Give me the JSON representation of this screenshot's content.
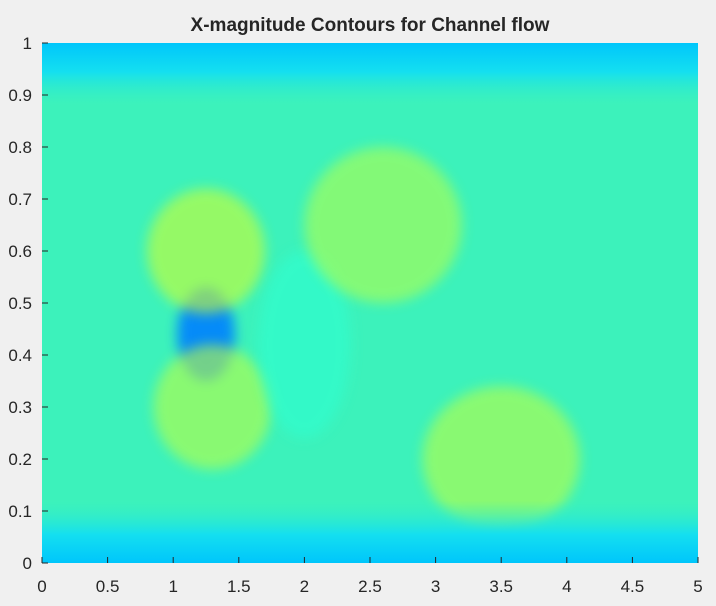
{
  "chart_data": {
    "type": "heatmap",
    "title": "X-magnitude Contours for Channel flow",
    "xlabel": "",
    "ylabel": "",
    "xlim": [
      0,
      5
    ],
    "ylim": [
      0,
      1
    ],
    "x_ticks": [
      "0",
      "0.5",
      "1",
      "1.5",
      "2",
      "2.5",
      "3",
      "3.5",
      "4",
      "4.5",
      "5"
    ],
    "y_ticks": [
      "0",
      "0.1",
      "0.2",
      "0.3",
      "0.4",
      "0.5",
      "0.6",
      "0.7",
      "0.8",
      "0.9",
      "1"
    ],
    "colormap": "jet",
    "grid": false,
    "colors": {
      "background": "#f0f0f0",
      "base_field": "#3cf2bb",
      "wall_layer": "#00c8fb",
      "obstacle_region": "#1a8ef0",
      "wake_high": "#8cf58a",
      "text": "#262626"
    },
    "features": [
      {
        "name": "obstacle-low-velocity-region",
        "x": 1.25,
        "y": 0.44,
        "rx": 0.22,
        "ry": 0.09,
        "level": 0.25
      },
      {
        "name": "upper-acceleration-band",
        "x": 1.25,
        "y": 0.6,
        "rx": 0.45,
        "ry": 0.12,
        "level": 0.58
      },
      {
        "name": "lower-acceleration-band",
        "x": 1.3,
        "y": 0.3,
        "rx": 0.45,
        "ry": 0.12,
        "level": 0.56
      },
      {
        "name": "wake-low-region",
        "x": 2.0,
        "y": 0.42,
        "rx": 0.35,
        "ry": 0.18,
        "level": 0.42
      },
      {
        "name": "upper-wake-high-region",
        "x": 2.6,
        "y": 0.65,
        "rx": 0.6,
        "ry": 0.15,
        "level": 0.55
      },
      {
        "name": "lower-wake-high-region",
        "x": 3.5,
        "y": 0.2,
        "rx": 0.6,
        "ry": 0.14,
        "level": 0.56
      }
    ]
  }
}
